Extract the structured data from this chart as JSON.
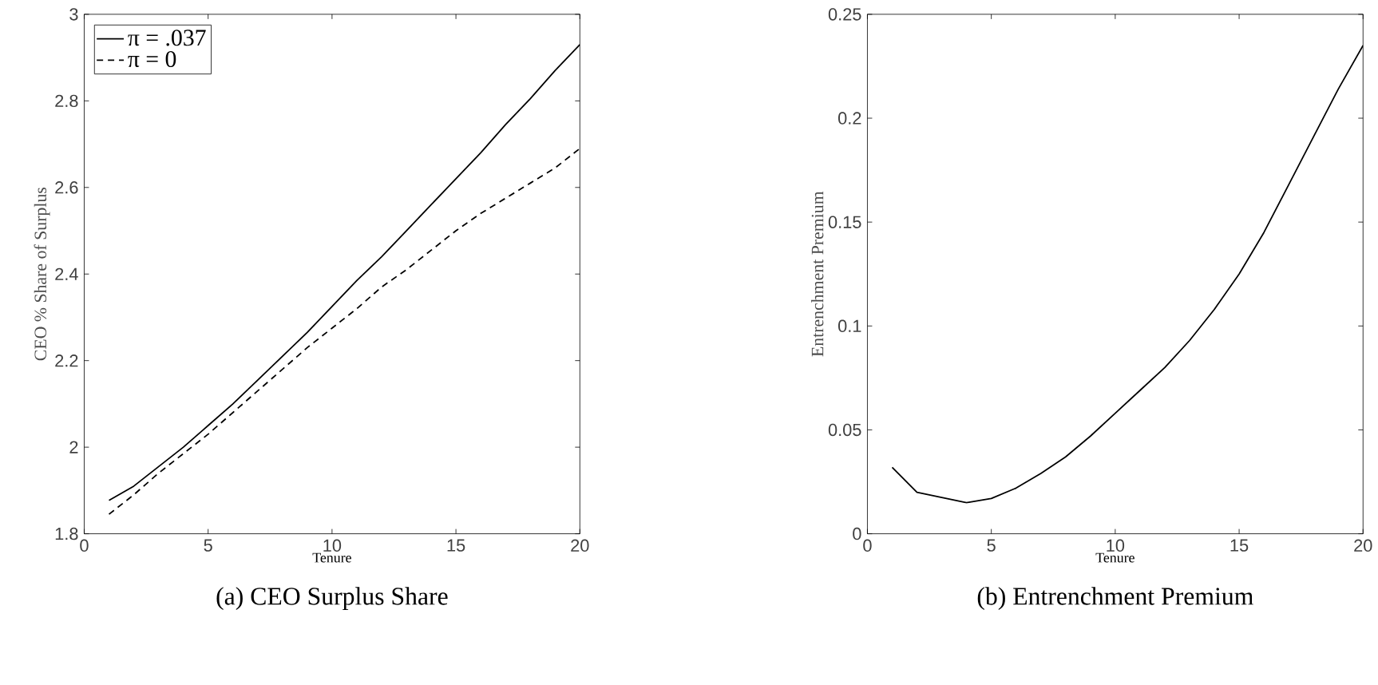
{
  "chart_data": [
    {
      "type": "line",
      "title": "(a)  CEO Surplus Share",
      "xlabel": "Tenure",
      "ylabel": "CEO % Share of Surplus",
      "x": [
        1,
        2,
        3,
        4,
        5,
        6,
        7,
        8,
        9,
        10,
        11,
        12,
        13,
        14,
        15,
        16,
        17,
        18,
        19,
        20
      ],
      "xlim": [
        0,
        20
      ],
      "xticks": [
        0,
        5,
        10,
        15,
        20
      ],
      "ylim": [
        1.8,
        3
      ],
      "yticks": [
        1.8,
        2,
        2.2,
        2.4,
        2.6,
        2.8,
        3
      ],
      "legend": "top left",
      "series": [
        {
          "name": "π = .037",
          "color": "#000000",
          "line_style": "solid",
          "values": [
            1.877,
            1.91,
            1.955,
            2.0,
            2.05,
            2.1,
            2.155,
            2.21,
            2.265,
            2.325,
            2.385,
            2.44,
            2.5,
            2.56,
            2.62,
            2.68,
            2.745,
            2.805,
            2.87,
            2.93
          ]
        },
        {
          "name": "π = 0",
          "color": "#000000",
          "line_style": "dashed",
          "values": [
            1.845,
            1.89,
            1.94,
            1.985,
            2.03,
            2.08,
            2.13,
            2.18,
            2.23,
            2.275,
            2.32,
            2.37,
            2.41,
            2.455,
            2.5,
            2.54,
            2.575,
            2.61,
            2.645,
            2.69
          ]
        }
      ]
    },
    {
      "type": "line",
      "title": "(b)  Entrenchment Premium",
      "xlabel": "Tenure",
      "ylabel": "Entrenchment Premium",
      "x": [
        1,
        2,
        3,
        4,
        5,
        6,
        7,
        8,
        9,
        10,
        11,
        12,
        13,
        14,
        15,
        16,
        17,
        18,
        19,
        20
      ],
      "xlim": [
        0,
        20
      ],
      "xticks": [
        0,
        5,
        10,
        15,
        20
      ],
      "ylim": [
        0,
        0.25
      ],
      "yticks": [
        0,
        0.05,
        0.1,
        0.15,
        0.2,
        0.25
      ],
      "series": [
        {
          "color": "#000000",
          "line_style": "solid",
          "values": [
            0.032,
            0.02,
            0.0175,
            0.015,
            0.017,
            0.022,
            0.029,
            0.037,
            0.047,
            0.058,
            0.069,
            0.08,
            0.093,
            0.108,
            0.125,
            0.145,
            0.168,
            0.191,
            0.214,
            0.235
          ]
        }
      ]
    }
  ]
}
